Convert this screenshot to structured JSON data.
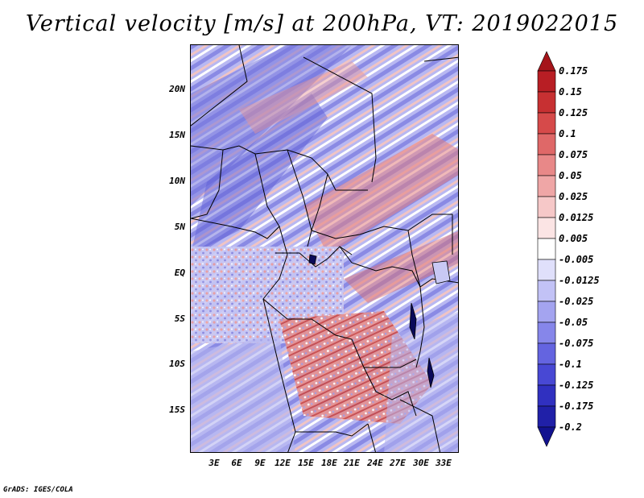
{
  "title": "Vertical velocity [m/s] at 200hPa, VT: 2019022015",
  "credit": "GrADS: IGES/COLA",
  "map": {
    "lat_labels": [
      "20N",
      "15N",
      "10N",
      "5N",
      "EQ",
      "5S",
      "10S",
      "15S"
    ],
    "lon_labels": [
      "3E",
      "6E",
      "9E",
      "12E",
      "15E",
      "18E",
      "21E",
      "24E",
      "27E",
      "30E",
      "33E"
    ],
    "lon_range": [
      0,
      35
    ],
    "lat_range": [
      -20,
      25
    ]
  },
  "colorbar": {
    "labels": [
      "0.175",
      "0.15",
      "0.125",
      "0.1",
      "0.075",
      "0.05",
      "0.025",
      "0.0125",
      "0.005",
      "-0.005",
      "-0.0125",
      "-0.025",
      "-0.05",
      "-0.075",
      "-0.1",
      "-0.125",
      "-0.175",
      "-0.2"
    ],
    "colors": [
      "#a5141a",
      "#b81e24",
      "#c73032",
      "#d64a4a",
      "#df6868",
      "#e88888",
      "#efa6a6",
      "#f6c8c8",
      "#fbe4e4",
      "#ffffff",
      "#e0e0fb",
      "#c2c2f6",
      "#a4a4f0",
      "#8686ea",
      "#6464e0",
      "#4848d4",
      "#3030c0",
      "#2020a8",
      "#121290"
    ]
  }
}
